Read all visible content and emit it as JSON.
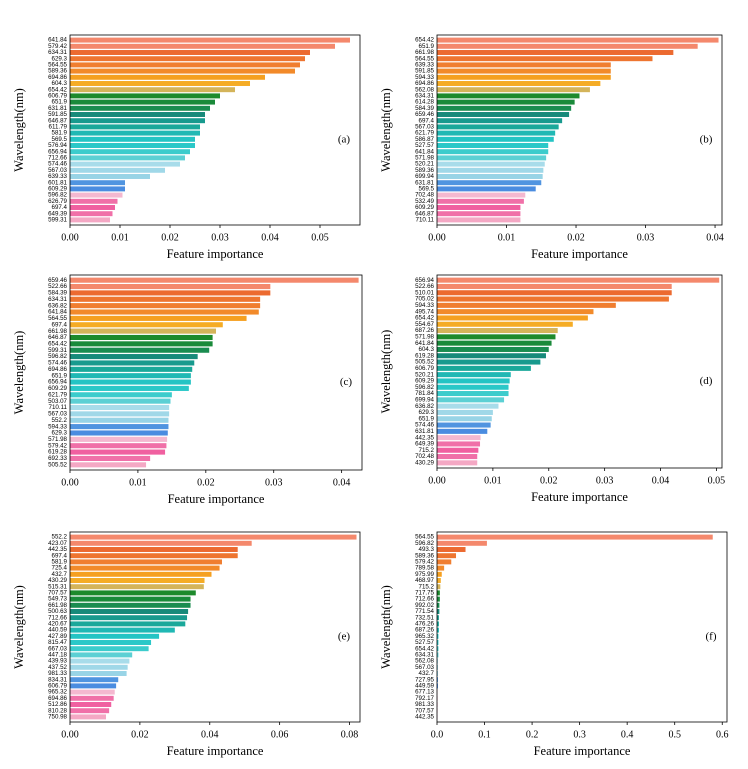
{
  "chart_data": [
    {
      "type": "barh",
      "panel": "(a)",
      "xlabel": "Feature importance",
      "ylabel": "Wavelength(nm)",
      "categories": [
        "641.84",
        "579.42",
        "634.31",
        "629.3",
        "564.55",
        "589.36",
        "694.86",
        "604.3",
        "654.42",
        "606.79",
        "651.9",
        "631.81",
        "591.85",
        "646.87",
        "611.79",
        "581.9",
        "569.5",
        "576.94",
        "656.94",
        "712.66",
        "574.46",
        "567.03",
        "639.33",
        "601.81",
        "609.29",
        "596.82",
        "626.79",
        "697.4",
        "649.39",
        "599.31"
      ],
      "values": [
        0.056,
        0.053,
        0.048,
        0.047,
        0.046,
        0.045,
        0.039,
        0.036,
        0.033,
        0.03,
        0.029,
        0.028,
        0.027,
        0.027,
        0.026,
        0.026,
        0.025,
        0.025,
        0.024,
        0.023,
        0.022,
        0.019,
        0.016,
        0.011,
        0.011,
        0.0105,
        0.0095,
        0.009,
        0.0085,
        0.008
      ],
      "colors": [
        "#f4886c",
        "#f4886c",
        "#ec6a30",
        "#ee7530",
        "#f07e30",
        "#f28a2a",
        "#f5a020",
        "#f5ac25",
        "#d4b45a",
        "#1d8a2c",
        "#1a8a3a",
        "#1a8c50",
        "#178a7a",
        "#189a8e",
        "#1aa89a",
        "#20b8b4",
        "#24c4c4",
        "#2ac8c8",
        "#3ccccc",
        "#5cd0d4",
        "#a8dcea",
        "#a0d8e8",
        "#98d4e6",
        "#5094e0",
        "#4a8ce0",
        "#f4b8d0",
        "#f070a8",
        "#f060a0",
        "#f070a8",
        "#f4a8c4"
      ],
      "xlim": [
        0,
        0.058
      ],
      "xticks": [
        {
          "value": 0,
          "label": "0.00"
        },
        {
          "value": 0.01,
          "label": "0.01"
        },
        {
          "value": 0.02,
          "label": "0.02"
        },
        {
          "value": 0.03,
          "label": "0.03"
        },
        {
          "value": 0.04,
          "label": "0.04"
        },
        {
          "value": 0.05,
          "label": "0.05"
        }
      ]
    },
    {
      "type": "barh",
      "panel": "(b)",
      "xlabel": "Feature importance",
      "ylabel": "Wavelength(nm)",
      "categories": [
        "654.42",
        "651.9",
        "661.98",
        "564.55",
        "639.33",
        "591.85",
        "594.33",
        "694.86",
        "562.08",
        "634.31",
        "614.28",
        "584.39",
        "659.46",
        "697.4",
        "567.03",
        "621.79",
        "586.87",
        "527.57",
        "641.84",
        "571.98",
        "520.21",
        "589.36",
        "699.94",
        "631.81",
        "569.5",
        "702.48",
        "532.49",
        "609.29",
        "646.87",
        "710.11"
      ],
      "values": [
        0.0405,
        0.0375,
        0.034,
        0.031,
        0.025,
        0.025,
        0.025,
        0.0235,
        0.022,
        0.0205,
        0.0198,
        0.0193,
        0.019,
        0.018,
        0.0175,
        0.017,
        0.0168,
        0.016,
        0.016,
        0.0157,
        0.0155,
        0.0153,
        0.0152,
        0.015,
        0.0142,
        0.0127,
        0.0125,
        0.012,
        0.012,
        0.012
      ],
      "colors": [
        "#f4886c",
        "#f4886c",
        "#ec6a30",
        "#ee7530",
        "#f07e30",
        "#f28a2a",
        "#f5a020",
        "#f5ac25",
        "#d4b45a",
        "#1d8a2c",
        "#1a8a3a",
        "#1a8c50",
        "#178a7a",
        "#189a8e",
        "#1aa89a",
        "#20b8b4",
        "#24c4c4",
        "#2ac8c8",
        "#3ccccc",
        "#5cd0d4",
        "#a8dcea",
        "#a0d8e8",
        "#98d4e6",
        "#5094e0",
        "#4a8ce0",
        "#f4b8d0",
        "#f070a8",
        "#f060a0",
        "#f070a8",
        "#f4a8c4"
      ],
      "xlim": [
        0,
        0.041
      ],
      "xticks": [
        {
          "value": 0,
          "label": "0.00"
        },
        {
          "value": 0.01,
          "label": "0.01"
        },
        {
          "value": 0.02,
          "label": "0.02"
        },
        {
          "value": 0.03,
          "label": "0.03"
        },
        {
          "value": 0.04,
          "label": "0.04"
        }
      ]
    },
    {
      "type": "barh",
      "panel": "(c)",
      "xlabel": "Feature importance",
      "ylabel": "Wavelength(nm)",
      "categories": [
        "659.46",
        "522.66",
        "584.39",
        "634.31",
        "636.82",
        "641.84",
        "564.55",
        "697.4",
        "661.98",
        "646.87",
        "654.42",
        "599.31",
        "596.82",
        "574.46",
        "694.86",
        "651.9",
        "656.94",
        "609.29",
        "621.79",
        "503.07",
        "710.11",
        "567.03",
        "552.2",
        "594.33",
        "629.3",
        "571.98",
        "579.42",
        "619.28",
        "692.33",
        "505.52"
      ],
      "values": [
        0.0425,
        0.0295,
        0.0295,
        0.028,
        0.028,
        0.0278,
        0.026,
        0.0225,
        0.0215,
        0.021,
        0.021,
        0.0205,
        0.0188,
        0.0183,
        0.018,
        0.0178,
        0.0178,
        0.0175,
        0.015,
        0.0148,
        0.0146,
        0.0146,
        0.0145,
        0.0145,
        0.0144,
        0.0143,
        0.0142,
        0.014,
        0.0118,
        0.0112
      ],
      "colors": [
        "#f4886c",
        "#f4886c",
        "#ec6a30",
        "#ee7530",
        "#f07e30",
        "#f28a2a",
        "#f5a020",
        "#f5ac25",
        "#d4b45a",
        "#1d8a2c",
        "#1a8a3a",
        "#1a8c50",
        "#178a7a",
        "#189a8e",
        "#1aa89a",
        "#20b8b4",
        "#24c4c4",
        "#2ac8c8",
        "#3ccccc",
        "#5cd0d4",
        "#a8dcea",
        "#a0d8e8",
        "#98d4e6",
        "#5094e0",
        "#4a8ce0",
        "#f4b8d0",
        "#f070a8",
        "#f060a0",
        "#f070a8",
        "#f4a8c4"
      ],
      "xlim": [
        0,
        0.043
      ],
      "xticks": [
        {
          "value": 0,
          "label": "0.00"
        },
        {
          "value": 0.01,
          "label": "0.01"
        },
        {
          "value": 0.02,
          "label": "0.02"
        },
        {
          "value": 0.03,
          "label": "0.03"
        },
        {
          "value": 0.04,
          "label": "0.04"
        }
      ]
    },
    {
      "type": "barh",
      "panel": "(d)",
      "xlabel": "Feature importance",
      "ylabel": "Wavelength(nm)",
      "categories": [
        "656.94",
        "522.66",
        "510.01",
        "705.02",
        "594.33",
        "495.74",
        "654.42",
        "554.67",
        "687.26",
        "571.98",
        "641.84",
        "604.3",
        "619.28",
        "505.52",
        "606.79",
        "520.21",
        "609.29",
        "596.82",
        "781.84",
        "699.94",
        "636.82",
        "629.3",
        "651.9",
        "574.46",
        "631.81",
        "442.35",
        "649.39",
        "715.2",
        "702.48",
        "430.29"
      ],
      "values": [
        0.0505,
        0.042,
        0.042,
        0.0415,
        0.032,
        0.028,
        0.027,
        0.0243,
        0.0216,
        0.0212,
        0.0205,
        0.02,
        0.0195,
        0.0185,
        0.0168,
        0.0132,
        0.013,
        0.0128,
        0.0128,
        0.012,
        0.011,
        0.01,
        0.0098,
        0.0096,
        0.009,
        0.0078,
        0.0077,
        0.0074,
        0.0072,
        0.0072
      ],
      "colors": [
        "#f4886c",
        "#f4886c",
        "#ec6a30",
        "#ee7530",
        "#f07e30",
        "#f28a2a",
        "#f5a020",
        "#f5ac25",
        "#d4b45a",
        "#1d8a2c",
        "#1a8a3a",
        "#1a8c50",
        "#178a7a",
        "#189a8e",
        "#1aa89a",
        "#20b8b4",
        "#24c4c4",
        "#2ac8c8",
        "#3ccccc",
        "#5cd0d4",
        "#a8dcea",
        "#a0d8e8",
        "#98d4e6",
        "#5094e0",
        "#4a8ce0",
        "#f4b8d0",
        "#f070a8",
        "#f060a0",
        "#f070a8",
        "#f4a8c4"
      ],
      "xlim": [
        0,
        0.051
      ],
      "xticks": [
        {
          "value": 0,
          "label": "0.00"
        },
        {
          "value": 0.01,
          "label": "0.01"
        },
        {
          "value": 0.02,
          "label": "0.02"
        },
        {
          "value": 0.03,
          "label": "0.03"
        },
        {
          "value": 0.04,
          "label": "0.04"
        },
        {
          "value": 0.05,
          "label": "0.05"
        }
      ]
    },
    {
      "type": "barh",
      "panel": "(e)",
      "xlabel": "Feature importance",
      "ylabel": "Wavelength(nm)",
      "categories": [
        "552.2",
        "423.07",
        "442.35",
        "697.4",
        "581.9",
        "725.4",
        "432.7",
        "430.29",
        "515.31",
        "707.57",
        "549.73",
        "661.98",
        "500.63",
        "712.66",
        "420.67",
        "440.59",
        "427.89",
        "815.47",
        "667.03",
        "447.18",
        "439.93",
        "437.52",
        "981.33",
        "834.31",
        "606.79",
        "965.32",
        "694.86",
        "512.86",
        "810.28",
        "750.98"
      ],
      "values": [
        0.082,
        0.052,
        0.048,
        0.048,
        0.0435,
        0.0428,
        0.0405,
        0.0385,
        0.0383,
        0.036,
        0.0345,
        0.0345,
        0.0338,
        0.0335,
        0.033,
        0.03,
        0.0255,
        0.0232,
        0.0225,
        0.0178,
        0.017,
        0.0165,
        0.0162,
        0.0138,
        0.0132,
        0.0128,
        0.0125,
        0.0118,
        0.0112,
        0.0103
      ],
      "colors": [
        "#f4886c",
        "#f4886c",
        "#ec6a30",
        "#ee7530",
        "#f07e30",
        "#f28a2a",
        "#f5a020",
        "#f5ac25",
        "#d4b45a",
        "#1d8a2c",
        "#1a8a3a",
        "#1a8c50",
        "#178a7a",
        "#189a8e",
        "#1aa89a",
        "#20b8b4",
        "#24c4c4",
        "#2ac8c8",
        "#3ccccc",
        "#5cd0d4",
        "#a8dcea",
        "#a0d8e8",
        "#98d4e6",
        "#5094e0",
        "#4a8ce0",
        "#f4b8d0",
        "#f070a8",
        "#f060a0",
        "#f070a8",
        "#f4a8c4"
      ],
      "xlim": [
        0,
        0.083
      ],
      "xticks": [
        {
          "value": 0,
          "label": "0.00"
        },
        {
          "value": 0.02,
          "label": "0.02"
        },
        {
          "value": 0.04,
          "label": "0.04"
        },
        {
          "value": 0.06,
          "label": "0.06"
        },
        {
          "value": 0.08,
          "label": "0.08"
        }
      ]
    },
    {
      "type": "barh",
      "panel": "(f)",
      "xlabel": "Feature importance",
      "ylabel": "Wavelength(nm)",
      "categories": [
        "564.55",
        "596.82",
        "493.3",
        "589.36",
        "579.42",
        "789.58",
        "975.99",
        "468.97",
        "715.2",
        "717.75",
        "712.66",
        "992.02",
        "771.54",
        "732.51",
        "476.26",
        "687.26",
        "965.32",
        "527.57",
        "654.42",
        "634.31",
        "562.08",
        "567.03",
        "432.7",
        "727.95",
        "449.59",
        "677.13",
        "792.17",
        "981.33",
        "707.57",
        "442.35"
      ],
      "values": [
        0.58,
        0.105,
        0.06,
        0.04,
        0.03,
        0.015,
        0.01,
        0.008,
        0.007,
        0.006,
        0.006,
        0.005,
        0.005,
        0.004,
        0.004,
        0.004,
        0.003,
        0.003,
        0.003,
        0.003,
        0.002,
        0.002,
        0.002,
        0.002,
        0.002,
        0.001,
        0.001,
        0.001,
        0.001,
        0.001
      ],
      "colors": [
        "#f4886c",
        "#f4886c",
        "#ec6a30",
        "#ee7530",
        "#f07e30",
        "#f28a2a",
        "#f5a020",
        "#f5ac25",
        "#d4b45a",
        "#1d8a2c",
        "#1a8a3a",
        "#1a8c50",
        "#178a7a",
        "#189a8e",
        "#1aa89a",
        "#20b8b4",
        "#24c4c4",
        "#2ac8c8",
        "#3ccccc",
        "#5cd0d4",
        "#a8dcea",
        "#a0d8e8",
        "#98d4e6",
        "#5094e0",
        "#4a8ce0",
        "#f4b8d0",
        "#f070a8",
        "#f060a0",
        "#f070a8",
        "#f4a8c4"
      ],
      "xlim": [
        0,
        0.61
      ],
      "xticks": [
        {
          "value": 0,
          "label": "0.0"
        },
        {
          "value": 0.1,
          "label": "0.1"
        },
        {
          "value": 0.2,
          "label": "0.2"
        },
        {
          "value": 0.3,
          "label": "0.3"
        },
        {
          "value": 0.4,
          "label": "0.4"
        },
        {
          "value": 0.5,
          "label": "0.5"
        },
        {
          "value": 0.6,
          "label": "0.6"
        }
      ]
    }
  ]
}
